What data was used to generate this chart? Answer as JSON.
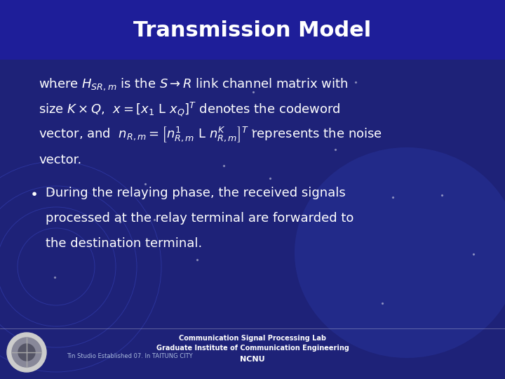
{
  "title": "Transmission Model",
  "bg_color": "#1e2278",
  "title_bg_color": "#1e1e99",
  "title_color": "#ffffff",
  "text_color": "#ffffff",
  "title_fontsize": 22,
  "body_fontsize": 13,
  "footer_fontsize": 7,
  "footer_small_fontsize": 6,
  "footer_line1": "Communication Signal Processing Lab",
  "footer_line2": "Graduate Institute of Communication Engineering",
  "footer_line3": "NCNU",
  "footer_left": "Tin Studio Established 07. In TAITUNG CITY"
}
